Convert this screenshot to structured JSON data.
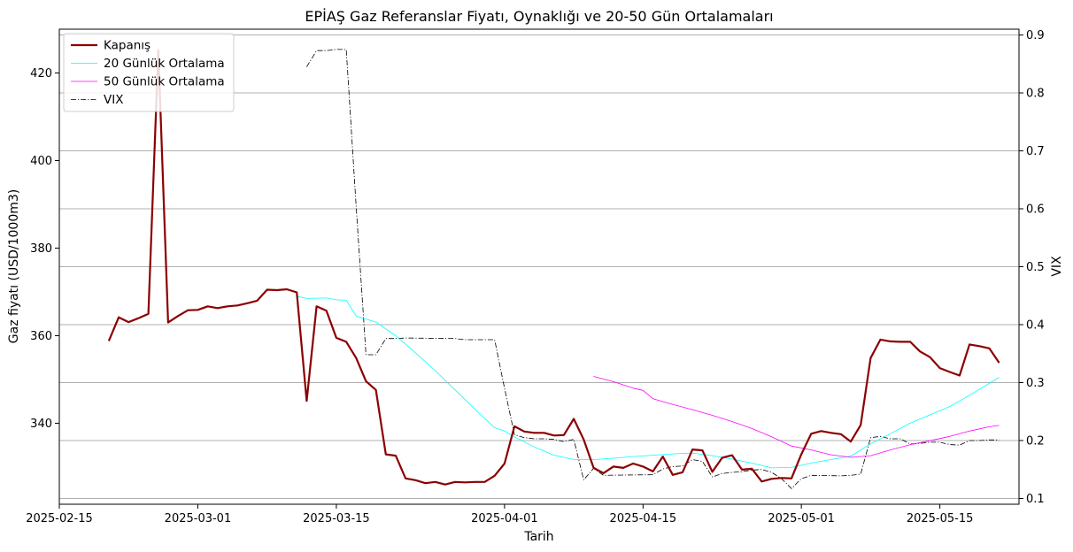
{
  "chart_data": {
    "type": "line",
    "title": "EPİAŞ Gaz Referanslar Fiyatı, Oynaklığı ve 20-50 Gün Ortalamaları",
    "xlabel": "Tarih",
    "ylabel": "Gaz fiyatı (USD/1000m3)",
    "y2label": "VIX",
    "xlim": [
      "2025-02-15",
      "2025-05-23"
    ],
    "ylim": [
      321.5,
      430
    ],
    "y2lim": [
      0.09,
      0.91
    ],
    "x_ticks": [
      "2025-02-15",
      "2025-03-01",
      "2025-03-15",
      "2025-04-01",
      "2025-04-15",
      "2025-05-01",
      "2025-05-15"
    ],
    "y_ticks": [
      340,
      360,
      380,
      400,
      420
    ],
    "y2_ticks": [
      0.1,
      0.2,
      0.3,
      0.4,
      0.5,
      0.6,
      0.7,
      0.8,
      0.9
    ],
    "y2_tick_labels": [
      "0.1",
      "0.2",
      "0.3",
      "0.4",
      "0.5",
      "0.6",
      "0.7",
      "0.8",
      "0.9"
    ],
    "grid": "horizontal lines at right-axis ticks",
    "legend_position": "upper-left",
    "series": [
      {
        "name": "Kapanış",
        "axis": "left",
        "color": "#8b0000",
        "dash": "solid",
        "width": "thick",
        "points": [
          [
            "2025-02-20",
            358.8
          ],
          [
            "2025-02-21",
            364.2
          ],
          [
            "2025-02-22",
            363.1
          ],
          [
            "2025-02-23",
            364.0
          ],
          [
            "2025-02-24",
            365.0
          ],
          [
            "2025-02-25",
            425.2
          ],
          [
            "2025-02-26",
            363.0
          ],
          [
            "2025-02-27",
            364.5
          ],
          [
            "2025-02-28",
            365.8
          ],
          [
            "2025-03-01",
            365.9
          ],
          [
            "2025-03-02",
            366.7
          ],
          [
            "2025-03-03",
            366.3
          ],
          [
            "2025-03-04",
            366.7
          ],
          [
            "2025-03-05",
            366.9
          ],
          [
            "2025-03-06",
            367.4
          ],
          [
            "2025-03-07",
            368.0
          ],
          [
            "2025-03-08",
            370.5
          ],
          [
            "2025-03-09",
            370.4
          ],
          [
            "2025-03-10",
            370.6
          ],
          [
            "2025-03-11",
            369.9
          ],
          [
            "2025-03-12",
            345.1
          ],
          [
            "2025-03-13",
            366.7
          ],
          [
            "2025-03-14",
            365.7
          ],
          [
            "2025-03-15",
            359.5
          ],
          [
            "2025-03-16",
            358.6
          ],
          [
            "2025-03-17",
            354.9
          ],
          [
            "2025-03-18",
            349.6
          ],
          [
            "2025-03-19",
            347.6
          ],
          [
            "2025-03-20",
            332.9
          ],
          [
            "2025-03-21",
            332.6
          ],
          [
            "2025-03-22",
            327.4
          ],
          [
            "2025-03-23",
            327.0
          ],
          [
            "2025-03-24",
            326.3
          ],
          [
            "2025-03-25",
            326.6
          ],
          [
            "2025-03-26",
            326.0
          ],
          [
            "2025-03-27",
            326.6
          ],
          [
            "2025-03-28",
            326.5
          ],
          [
            "2025-03-29",
            326.6
          ],
          [
            "2025-03-30",
            326.6
          ],
          [
            "2025-03-31",
            328.0
          ],
          [
            "2025-04-01",
            330.8
          ],
          [
            "2025-04-02",
            339.3
          ],
          [
            "2025-04-03",
            338.1
          ],
          [
            "2025-04-04",
            337.8
          ],
          [
            "2025-04-05",
            337.8
          ],
          [
            "2025-04-06",
            337.2
          ],
          [
            "2025-04-07",
            337.3
          ],
          [
            "2025-04-08",
            341.0
          ],
          [
            "2025-04-09",
            336.3
          ],
          [
            "2025-04-10",
            329.8
          ],
          [
            "2025-04-11",
            328.6
          ],
          [
            "2025-04-12",
            330.1
          ],
          [
            "2025-04-13",
            329.8
          ],
          [
            "2025-04-14",
            330.8
          ],
          [
            "2025-04-15",
            330.1
          ],
          [
            "2025-04-16",
            329.0
          ],
          [
            "2025-04-17",
            332.4
          ],
          [
            "2025-04-18",
            328.2
          ],
          [
            "2025-04-19",
            328.8
          ],
          [
            "2025-04-20",
            334.0
          ],
          [
            "2025-04-21",
            333.8
          ],
          [
            "2025-04-22",
            328.9
          ],
          [
            "2025-04-23",
            332.1
          ],
          [
            "2025-04-24",
            332.7
          ],
          [
            "2025-04-25",
            329.4
          ],
          [
            "2025-04-26",
            329.6
          ],
          [
            "2025-04-27",
            326.7
          ],
          [
            "2025-04-28",
            327.3
          ],
          [
            "2025-04-29",
            327.5
          ],
          [
            "2025-04-30",
            327.4
          ],
          [
            "2025-05-01",
            332.9
          ],
          [
            "2025-05-02",
            337.6
          ],
          [
            "2025-05-03",
            338.2
          ],
          [
            "2025-05-04",
            337.8
          ],
          [
            "2025-05-05",
            337.5
          ],
          [
            "2025-05-06",
            335.8
          ],
          [
            "2025-05-07",
            339.6
          ],
          [
            "2025-05-08",
            354.9
          ],
          [
            "2025-05-09",
            359.1
          ],
          [
            "2025-05-10",
            358.7
          ],
          [
            "2025-05-11",
            358.6
          ],
          [
            "2025-05-12",
            358.6
          ],
          [
            "2025-05-13",
            356.4
          ],
          [
            "2025-05-14",
            355.1
          ],
          [
            "2025-05-15",
            352.6
          ],
          [
            "2025-05-16",
            351.7
          ],
          [
            "2025-05-17",
            350.9
          ],
          [
            "2025-05-18",
            358.0
          ],
          [
            "2025-05-19",
            357.6
          ],
          [
            "2025-05-20",
            357.1
          ],
          [
            "2025-05-21",
            353.8
          ]
        ]
      },
      {
        "name": "20 Günlük Ortalama",
        "axis": "left",
        "color": "#00ffff",
        "dash": "solid",
        "width": "thin",
        "points": [
          [
            "2025-03-11",
            369.0
          ],
          [
            "2025-03-12",
            368.5
          ],
          [
            "2025-03-14",
            368.6
          ],
          [
            "2025-03-15",
            368.2
          ],
          [
            "2025-03-16",
            368.1
          ],
          [
            "2025-03-17",
            364.5
          ],
          [
            "2025-03-19",
            363.1
          ],
          [
            "2025-03-21",
            360.0
          ],
          [
            "2025-03-23",
            356.1
          ],
          [
            "2025-03-25",
            352.0
          ],
          [
            "2025-03-27",
            347.6
          ],
          [
            "2025-03-29",
            343.2
          ],
          [
            "2025-03-31",
            339.0
          ],
          [
            "2025-04-01",
            338.2
          ],
          [
            "2025-04-02",
            336.9
          ],
          [
            "2025-04-04",
            334.6
          ],
          [
            "2025-04-06",
            332.7
          ],
          [
            "2025-04-08",
            331.7
          ],
          [
            "2025-04-10",
            331.7
          ],
          [
            "2025-04-12",
            332.0
          ],
          [
            "2025-04-14",
            332.4
          ],
          [
            "2025-04-16",
            332.7
          ],
          [
            "2025-04-18",
            333.0
          ],
          [
            "2025-04-20",
            333.2
          ],
          [
            "2025-04-22",
            332.6
          ],
          [
            "2025-04-24",
            331.8
          ],
          [
            "2025-04-26",
            330.9
          ],
          [
            "2025-04-28",
            329.8
          ],
          [
            "2025-04-30",
            329.9
          ],
          [
            "2025-05-02",
            330.9
          ],
          [
            "2025-05-04",
            331.7
          ],
          [
            "2025-05-06",
            332.5
          ],
          [
            "2025-05-08",
            335.3
          ],
          [
            "2025-05-10",
            337.6
          ],
          [
            "2025-05-12",
            340.0
          ],
          [
            "2025-05-14",
            341.9
          ],
          [
            "2025-05-16",
            343.8
          ],
          [
            "2025-05-18",
            346.4
          ],
          [
            "2025-05-20",
            349.1
          ],
          [
            "2025-05-21",
            350.5
          ]
        ]
      },
      {
        "name": "50 Günlük Ortalama",
        "axis": "left",
        "color": "#ff00ff",
        "dash": "solid",
        "width": "thin",
        "points": [
          [
            "2025-04-10",
            350.7
          ],
          [
            "2025-04-12",
            349.5
          ],
          [
            "2025-04-14",
            348.0
          ],
          [
            "2025-04-15",
            347.5
          ],
          [
            "2025-04-16",
            345.6
          ],
          [
            "2025-04-18",
            344.3
          ],
          [
            "2025-04-20",
            343.1
          ],
          [
            "2025-04-22",
            341.8
          ],
          [
            "2025-04-24",
            340.4
          ],
          [
            "2025-04-26",
            338.8
          ],
          [
            "2025-04-28",
            336.9
          ],
          [
            "2025-04-30",
            334.8
          ],
          [
            "2025-05-02",
            333.9
          ],
          [
            "2025-05-04",
            332.8
          ],
          [
            "2025-05-06",
            332.2
          ],
          [
            "2025-05-08",
            332.6
          ],
          [
            "2025-05-10",
            333.9
          ],
          [
            "2025-05-12",
            335.1
          ],
          [
            "2025-05-14",
            336.0
          ],
          [
            "2025-05-16",
            337.0
          ],
          [
            "2025-05-18",
            338.2
          ],
          [
            "2025-05-20",
            339.2
          ],
          [
            "2025-05-21",
            339.5
          ]
        ]
      },
      {
        "name": "VIX",
        "axis": "right",
        "color": "#000000",
        "dash": "dashdot",
        "width": "thin",
        "points": [
          [
            "2025-03-12",
            0.845
          ],
          [
            "2025-03-13",
            0.873
          ],
          [
            "2025-03-14",
            0.873
          ],
          [
            "2025-03-15",
            0.875
          ],
          [
            "2025-03-16",
            0.875
          ],
          [
            "2025-03-17",
            0.604
          ],
          [
            "2025-03-18",
            0.348
          ],
          [
            "2025-03-19",
            0.348
          ],
          [
            "2025-03-20",
            0.376
          ],
          [
            "2025-03-21",
            0.376
          ],
          [
            "2025-03-22",
            0.377
          ],
          [
            "2025-03-27",
            0.376
          ],
          [
            "2025-03-28",
            0.374
          ],
          [
            "2025-03-29",
            0.374
          ],
          [
            "2025-03-31",
            0.374
          ],
          [
            "2025-04-01",
            0.29
          ],
          [
            "2025-04-02",
            0.21
          ],
          [
            "2025-04-03",
            0.205
          ],
          [
            "2025-04-04",
            0.203
          ],
          [
            "2025-04-05",
            0.203
          ],
          [
            "2025-04-06",
            0.202
          ],
          [
            "2025-04-07",
            0.198
          ],
          [
            "2025-04-08",
            0.202
          ],
          [
            "2025-04-09",
            0.132
          ],
          [
            "2025-04-10",
            0.152
          ],
          [
            "2025-04-11",
            0.14
          ],
          [
            "2025-04-16",
            0.141
          ],
          [
            "2025-04-17",
            0.151
          ],
          [
            "2025-04-18",
            0.155
          ],
          [
            "2025-04-19",
            0.156
          ],
          [
            "2025-04-20",
            0.167
          ],
          [
            "2025-04-21",
            0.164
          ],
          [
            "2025-04-22",
            0.137
          ],
          [
            "2025-04-23",
            0.143
          ],
          [
            "2025-04-24",
            0.145
          ],
          [
            "2025-04-25",
            0.146
          ],
          [
            "2025-04-26",
            0.149
          ],
          [
            "2025-04-27",
            0.15
          ],
          [
            "2025-04-28",
            0.145
          ],
          [
            "2025-04-29",
            0.134
          ],
          [
            "2025-04-30",
            0.117
          ],
          [
            "2025-05-01",
            0.134
          ],
          [
            "2025-05-02",
            0.14
          ],
          [
            "2025-05-05",
            0.139
          ],
          [
            "2025-05-06",
            0.14
          ],
          [
            "2025-05-07",
            0.142
          ],
          [
            "2025-05-08",
            0.205
          ],
          [
            "2025-05-09",
            0.207
          ],
          [
            "2025-05-10",
            0.203
          ],
          [
            "2025-05-11",
            0.203
          ],
          [
            "2025-05-12",
            0.194
          ],
          [
            "2025-05-13",
            0.195
          ],
          [
            "2025-05-14",
            0.197
          ],
          [
            "2025-05-15",
            0.197
          ],
          [
            "2025-05-16",
            0.193
          ],
          [
            "2025-05-17",
            0.192
          ],
          [
            "2025-05-18",
            0.2
          ],
          [
            "2025-05-19",
            0.2
          ],
          [
            "2025-05-20",
            0.201
          ],
          [
            "2025-05-21",
            0.201
          ]
        ]
      }
    ]
  }
}
